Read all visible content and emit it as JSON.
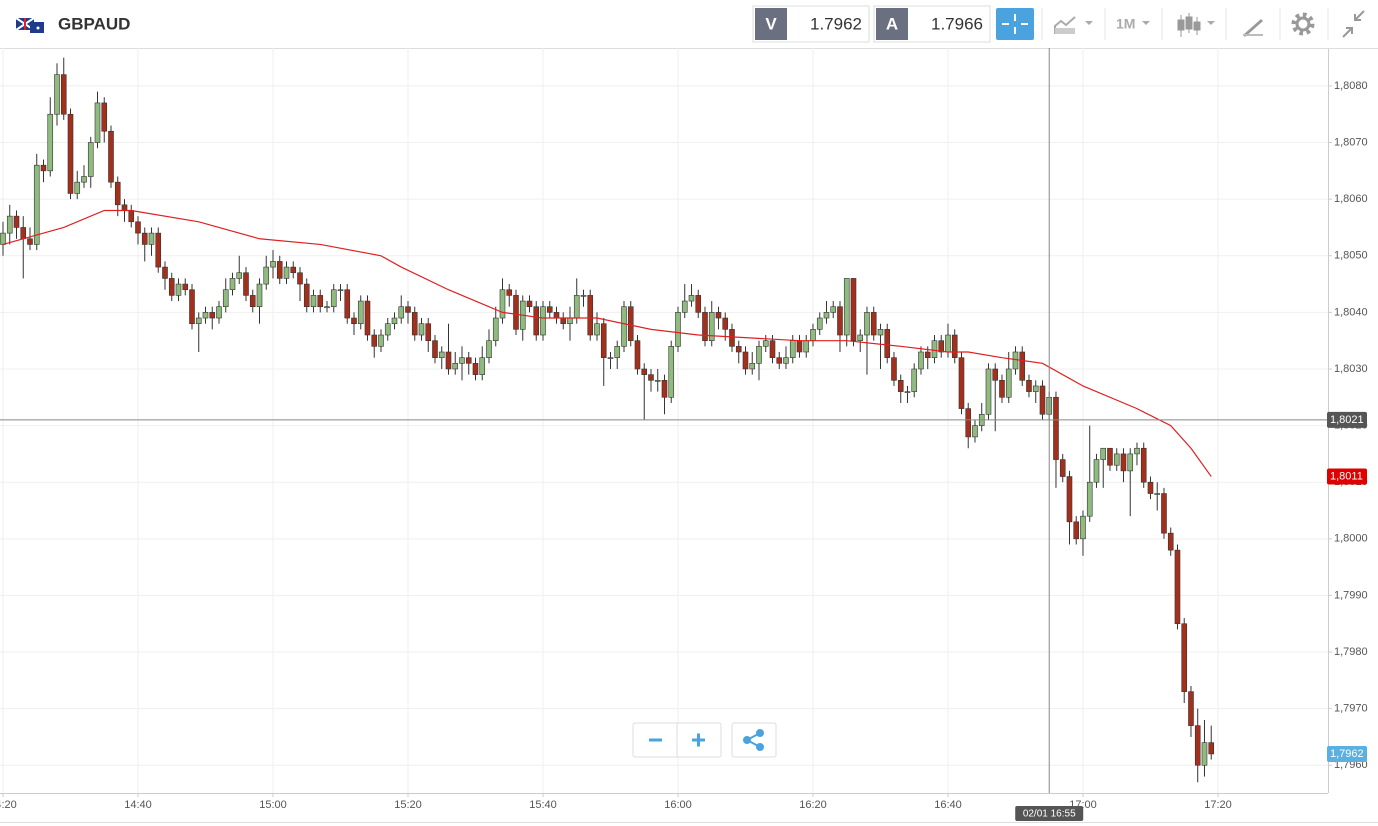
{
  "header": {
    "symbol": "GBPAUD",
    "bid_label": "V",
    "bid": 1.7962,
    "ask_label": "A",
    "ask": 1.7966,
    "period": "1M"
  },
  "chart_data": {
    "type": "candlestick",
    "open": [
      1.8052,
      1.8054,
      1.8057,
      1.8055,
      1.8053,
      1.8052,
      1.8066,
      1.8065,
      1.8075,
      1.8082,
      1.8075,
      1.8061,
      1.8063,
      1.8064,
      1.807,
      1.8077,
      1.8072,
      1.8063,
      1.8059,
      1.8058,
      1.8056,
      1.8054,
      1.8052,
      1.8054,
      1.8048,
      1.8046,
      1.8043,
      1.8045,
      1.8044,
      1.8038,
      1.8039,
      1.804,
      1.8039,
      1.8041,
      1.8044,
      1.8046,
      1.8047,
      1.8043,
      1.8041,
      1.8045,
      1.8048,
      1.8049,
      1.8046,
      1.8048,
      1.8047,
      1.8045,
      1.8041,
      1.8043,
      1.8041,
      1.8041,
      1.8044,
      1.8044,
      1.8039,
      1.8038,
      1.8042,
      1.8036,
      1.8034,
      1.8036,
      1.8038,
      1.8039,
      1.8041,
      1.804,
      1.8036,
      1.8038,
      1.8035,
      1.8032,
      1.8033,
      1.803,
      1.8031,
      1.8032,
      1.8031,
      1.8029,
      1.8032,
      1.8035,
      1.8039,
      1.8044,
      1.8043,
      1.8037,
      1.8042,
      1.8041,
      1.8036,
      1.8041,
      1.804,
      1.8039,
      1.8038,
      1.8039,
      1.8043,
      1.8043,
      1.8036,
      1.8038,
      1.8032,
      1.8032,
      1.8034,
      1.8041,
      1.8035,
      1.803,
      1.8029,
      1.8028,
      1.8028,
      1.8025,
      1.8034,
      1.804,
      1.8042,
      1.8043,
      1.804,
      1.8035,
      1.804,
      1.8039,
      1.8037,
      1.8034,
      1.8033,
      1.803,
      1.8031,
      1.8034,
      1.8035,
      1.8032,
      1.8031,
      1.8032,
      1.8035,
      1.8033,
      1.8035,
      1.8037,
      1.8039,
      1.804,
      1.8041,
      1.8036,
      1.8046,
      1.8035,
      1.8036,
      1.804,
      1.8036,
      1.8037,
      1.8032,
      1.8028,
      1.8026,
      1.8026,
      1.803,
      1.8033,
      1.8032,
      1.8035,
      1.8033,
      1.8036,
      1.8032,
      1.8023,
      1.8018,
      1.802,
      1.8022,
      1.803,
      1.8028,
      1.8025,
      1.803,
      1.8033,
      1.8028,
      1.8026,
      1.8027,
      1.8022,
      1.8025,
      1.8014,
      1.8011,
      1.8003,
      1.8,
      1.8004,
      1.801,
      1.8014,
      1.8016,
      1.8013,
      1.8015,
      1.8012,
      1.8015,
      1.8016,
      1.801,
      1.8008,
      1.8008,
      1.8001,
      1.7998,
      1.7985,
      1.7973,
      1.7967,
      1.796,
      1.7964
    ],
    "high": [
      1.8056,
      1.8059,
      1.8058,
      1.8057,
      1.8055,
      1.8068,
      1.8067,
      1.8078,
      1.8084,
      1.8085,
      1.8076,
      1.8065,
      1.8066,
      1.8071,
      1.8079,
      1.8078,
      1.8073,
      1.8064,
      1.806,
      1.8059,
      1.8057,
      1.8055,
      1.8055,
      1.8055,
      1.8049,
      1.8047,
      1.8046,
      1.8046,
      1.8045,
      1.804,
      1.8041,
      1.8041,
      1.8042,
      1.8046,
      1.8047,
      1.805,
      1.8048,
      1.8044,
      1.8046,
      1.805,
      1.8051,
      1.805,
      1.8049,
      1.8049,
      1.8048,
      1.8046,
      1.8044,
      1.8044,
      1.8042,
      1.8045,
      1.8045,
      1.8045,
      1.804,
      1.8043,
      1.8043,
      1.8037,
      1.8037,
      1.8039,
      1.804,
      1.8043,
      1.8042,
      1.8041,
      1.8039,
      1.8039,
      1.8036,
      1.8034,
      1.8038,
      1.8033,
      1.8034,
      1.8033,
      1.8032,
      1.8034,
      1.8037,
      1.8041,
      1.8046,
      1.8045,
      1.8044,
      1.8043,
      1.8043,
      1.8042,
      1.8042,
      1.8042,
      1.8041,
      1.804,
      1.8041,
      1.8046,
      1.8044,
      1.8044,
      1.804,
      1.8039,
      1.8033,
      1.8035,
      1.8042,
      1.8042,
      1.8036,
      1.8031,
      1.803,
      1.803,
      1.8029,
      1.8035,
      1.8041,
      1.8045,
      1.8045,
      1.8044,
      1.8041,
      1.8042,
      1.8041,
      1.804,
      1.8038,
      1.8035,
      1.8034,
      1.8033,
      1.8035,
      1.8036,
      1.8036,
      1.8033,
      1.8034,
      1.8036,
      1.8036,
      1.8036,
      1.8038,
      1.804,
      1.8042,
      1.8042,
      1.8042,
      1.8046,
      1.8046,
      1.8037,
      1.8041,
      1.8041,
      1.8038,
      1.8038,
      1.8033,
      1.8029,
      1.8027,
      1.8031,
      1.8034,
      1.8034,
      1.8036,
      1.8036,
      1.8038,
      1.8037,
      1.8033,
      1.8024,
      1.8021,
      1.8024,
      1.8031,
      1.8031,
      1.8029,
      1.8033,
      1.8034,
      1.8034,
      1.8029,
      1.8028,
      1.8028,
      1.8026,
      1.8026,
      1.8015,
      1.8012,
      1.8004,
      1.8005,
      1.802,
      1.8015,
      1.8016,
      1.8016,
      1.8016,
      1.8016,
      1.8016,
      1.8017,
      1.8017,
      1.8011,
      1.801,
      1.8009,
      1.8002,
      1.7999,
      1.7986,
      1.7974,
      1.797,
      1.7968,
      1.7967
    ],
    "low": [
      1.805,
      1.8052,
      1.8053,
      1.8046,
      1.8051,
      1.8051,
      1.8063,
      1.8064,
      1.8073,
      1.8074,
      1.806,
      1.806,
      1.8062,
      1.8062,
      1.8069,
      1.807,
      1.8062,
      1.8057,
      1.8056,
      1.8055,
      1.8052,
      1.8049,
      1.805,
      1.8047,
      1.8044,
      1.8042,
      1.8042,
      1.8043,
      1.8037,
      1.8033,
      1.8038,
      1.8037,
      1.8038,
      1.804,
      1.8043,
      1.8045,
      1.8042,
      1.804,
      1.8038,
      1.8044,
      1.8046,
      1.8045,
      1.8045,
      1.8046,
      1.8042,
      1.804,
      1.804,
      1.804,
      1.804,
      1.804,
      1.8042,
      1.8038,
      1.8036,
      1.8037,
      1.8035,
      1.8032,
      1.8033,
      1.8035,
      1.8037,
      1.8038,
      1.8038,
      1.8035,
      1.8035,
      1.8033,
      1.8031,
      1.803,
      1.8029,
      1.8029,
      1.8028,
      1.8029,
      1.8028,
      1.8028,
      1.8031,
      1.8034,
      1.8038,
      1.8041,
      1.8036,
      1.8035,
      1.804,
      1.8035,
      1.8035,
      1.8039,
      1.8038,
      1.8037,
      1.8035,
      1.8038,
      1.8041,
      1.8035,
      1.8035,
      1.8027,
      1.803,
      1.803,
      1.8033,
      1.8034,
      1.8029,
      1.8021,
      1.8026,
      1.8026,
      1.8022,
      1.8024,
      1.8033,
      1.8039,
      1.8041,
      1.8039,
      1.8034,
      1.8034,
      1.8037,
      1.8035,
      1.8033,
      1.8031,
      1.8029,
      1.8029,
      1.8028,
      1.8033,
      1.8031,
      1.803,
      1.803,
      1.8031,
      1.8032,
      1.8032,
      1.8034,
      1.8036,
      1.8038,
      1.8039,
      1.8033,
      1.8034,
      1.8034,
      1.8033,
      1.8029,
      1.8035,
      1.803,
      1.8031,
      1.8027,
      1.8024,
      1.8024,
      1.8025,
      1.8029,
      1.803,
      1.8031,
      1.8032,
      1.8032,
      1.8031,
      1.8022,
      1.8016,
      1.8017,
      1.8019,
      1.8021,
      1.8019,
      1.8024,
      1.8024,
      1.8029,
      1.8027,
      1.8025,
      1.8024,
      1.8021,
      1.8021,
      1.8009,
      1.801,
      1.7999,
      1.7999,
      1.7997,
      1.8003,
      1.8009,
      1.8009,
      1.8012,
      1.8012,
      1.801,
      1.8004,
      1.8013,
      1.8009,
      1.8007,
      1.8005,
      1.8,
      1.7997,
      1.7984,
      1.7971,
      1.7965,
      1.7957,
      1.7958,
      1.7961
    ],
    "close": [
      1.8054,
      1.8057,
      1.8055,
      1.8053,
      1.8052,
      1.8066,
      1.8065,
      1.8075,
      1.8082,
      1.8075,
      1.8061,
      1.8063,
      1.8064,
      1.807,
      1.8077,
      1.8072,
      1.8063,
      1.8059,
      1.8058,
      1.8056,
      1.8054,
      1.8052,
      1.8054,
      1.8048,
      1.8046,
      1.8043,
      1.8045,
      1.8044,
      1.8038,
      1.8039,
      1.804,
      1.8039,
      1.8041,
      1.8044,
      1.8046,
      1.8047,
      1.8043,
      1.8041,
      1.8045,
      1.8048,
      1.8049,
      1.8046,
      1.8048,
      1.8047,
      1.8045,
      1.8041,
      1.8043,
      1.8041,
      1.8041,
      1.8044,
      1.8044,
      1.8039,
      1.8038,
      1.8042,
      1.8036,
      1.8034,
      1.8036,
      1.8038,
      1.8039,
      1.8041,
      1.804,
      1.8036,
      1.8038,
      1.8035,
      1.8032,
      1.8033,
      1.803,
      1.8031,
      1.8032,
      1.8031,
      1.8029,
      1.8032,
      1.8035,
      1.8039,
      1.8044,
      1.8043,
      1.8037,
      1.8042,
      1.8041,
      1.8036,
      1.8041,
      1.804,
      1.8039,
      1.8038,
      1.8039,
      1.8043,
      1.8043,
      1.8036,
      1.8038,
      1.8032,
      1.8032,
      1.8034,
      1.8041,
      1.8035,
      1.803,
      1.8029,
      1.8028,
      1.8028,
      1.8025,
      1.8034,
      1.804,
      1.8042,
      1.8043,
      1.804,
      1.8035,
      1.804,
      1.8039,
      1.8037,
      1.8034,
      1.8033,
      1.803,
      1.8031,
      1.8034,
      1.8035,
      1.8032,
      1.8031,
      1.8032,
      1.8035,
      1.8033,
      1.8035,
      1.8037,
      1.8039,
      1.804,
      1.8041,
      1.8036,
      1.8046,
      1.8035,
      1.8036,
      1.804,
      1.8036,
      1.8037,
      1.8032,
      1.8028,
      1.8026,
      1.8026,
      1.803,
      1.8033,
      1.8032,
      1.8035,
      1.8033,
      1.8036,
      1.8032,
      1.8023,
      1.8018,
      1.802,
      1.8022,
      1.803,
      1.8028,
      1.8025,
      1.803,
      1.8033,
      1.8028,
      1.8026,
      1.8027,
      1.8022,
      1.8025,
      1.8014,
      1.8011,
      1.8003,
      1.8,
      1.8004,
      1.801,
      1.8014,
      1.8016,
      1.8013,
      1.8015,
      1.8012,
      1.8015,
      1.8016,
      1.801,
      1.8008,
      1.8008,
      1.8001,
      1.7998,
      1.7985,
      1.7973,
      1.7967,
      1.796,
      1.7964,
      1.7962
    ],
    "up_color": "#8fbb7f",
    "down_color": "#a3301d",
    "ma": {
      "color": "#e02020",
      "x": [
        0,
        9,
        15,
        19,
        29,
        38,
        47,
        56,
        59,
        66,
        74,
        80,
        88,
        96,
        103,
        118,
        125,
        133,
        140,
        143,
        148,
        154,
        160,
        168,
        173,
        176,
        179
      ],
      "values": [
        1.8052,
        1.8055,
        1.8058,
        1.8058,
        1.8056,
        1.8053,
        1.8052,
        1.805,
        1.8048,
        1.8044,
        1.804,
        1.8039,
        1.8039,
        1.8037,
        1.8036,
        1.8035,
        1.8035,
        1.8034,
        1.8033,
        1.8033,
        1.8032,
        1.8031,
        1.8027,
        1.8023,
        1.802,
        1.8016,
        1.8011
      ]
    },
    "xlim": [
      -0.444,
      196.3
    ],
    "xticks": [
      {
        "value": 0,
        "label": "14:20"
      },
      {
        "value": 20,
        "label": "14:40"
      },
      {
        "value": 40,
        "label": "15:00"
      },
      {
        "value": 60,
        "label": "15:20"
      },
      {
        "value": 80,
        "label": "15:40"
      },
      {
        "value": 100,
        "label": "16:00"
      },
      {
        "value": 120,
        "label": "16:20"
      },
      {
        "value": 140,
        "label": "16:40"
      },
      {
        "value": 160,
        "label": "17:00"
      },
      {
        "value": 180,
        "label": "17:20"
      }
    ],
    "ylim": [
      1.79551,
      1.80867
    ],
    "yticks": [
      {
        "value": 1.808,
        "label": "1,8080"
      },
      {
        "value": 1.807,
        "label": "1,8070"
      },
      {
        "value": 1.806,
        "label": "1,8060"
      },
      {
        "value": 1.805,
        "label": "1,8050"
      },
      {
        "value": 1.804,
        "label": "1,8040"
      },
      {
        "value": 1.803,
        "label": "1,8030"
      },
      {
        "value": 1.802,
        "label": "1,8020"
      },
      {
        "value": 1.801,
        "label": "1,8010"
      },
      {
        "value": 1.8,
        "label": "1,8000"
      },
      {
        "value": 1.799,
        "label": "1,7990"
      },
      {
        "value": 1.798,
        "label": "1,7980"
      },
      {
        "value": 1.797,
        "label": "1,7970"
      },
      {
        "value": 1.796,
        "label": "1,7960"
      }
    ],
    "grid": true,
    "crosshair": {
      "x": 155,
      "x_label": "02/01 16:55",
      "y": {
        "value": 1.8021,
        "label": "1,8021"
      }
    },
    "ma_tag": {
      "value": 1.8011,
      "label": "1,8011"
    },
    "price_tag": {
      "value": 1.7962,
      "label": "1,7962"
    }
  }
}
